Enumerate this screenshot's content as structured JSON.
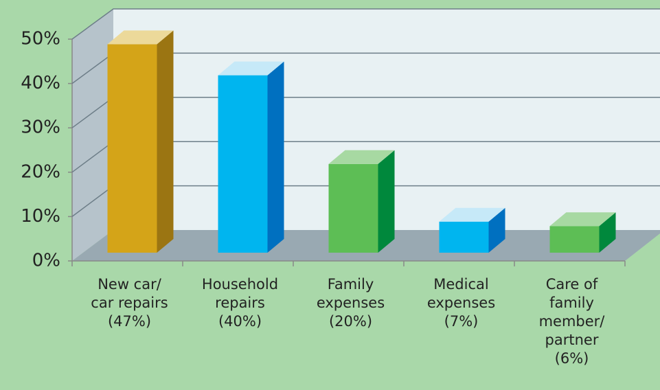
{
  "chart_data": {
    "type": "bar3d",
    "categories": [
      [
        "New car/",
        "car repairs",
        "(47%)"
      ],
      [
        "Household",
        "repairs",
        "(40%)"
      ],
      [
        "Family",
        "expenses",
        "(20%)"
      ],
      [
        "Medical",
        "expenses",
        "(7%)"
      ],
      [
        "Care of",
        "family",
        "member/",
        "partner",
        "(6%)"
      ]
    ],
    "values": [
      47,
      40,
      20,
      7,
      6
    ],
    "colors": [
      "#d4a418",
      "#00b5ef",
      "#5dbe55",
      "#00b5ef",
      "#5dbe55"
    ],
    "side_colors": [
      "#9b7512",
      "#0070c0",
      "#00883c",
      "#0070c0",
      "#00883c"
    ],
    "top_colors": [
      "#ecd99a",
      "#c6e9f8",
      "#a7d9a2",
      "#c6e9f8",
      "#a7d9a2"
    ],
    "ylim": [
      0,
      50
    ],
    "yticks": [
      {
        "value": 0,
        "label": "0%"
      },
      {
        "value": 10,
        "label": "10%"
      },
      {
        "value": 20,
        "label": "20%"
      },
      {
        "value": 30,
        "label": "30%"
      },
      {
        "value": 40,
        "label": "40%"
      },
      {
        "value": 50,
        "label": "50%"
      }
    ],
    "grid": true
  }
}
